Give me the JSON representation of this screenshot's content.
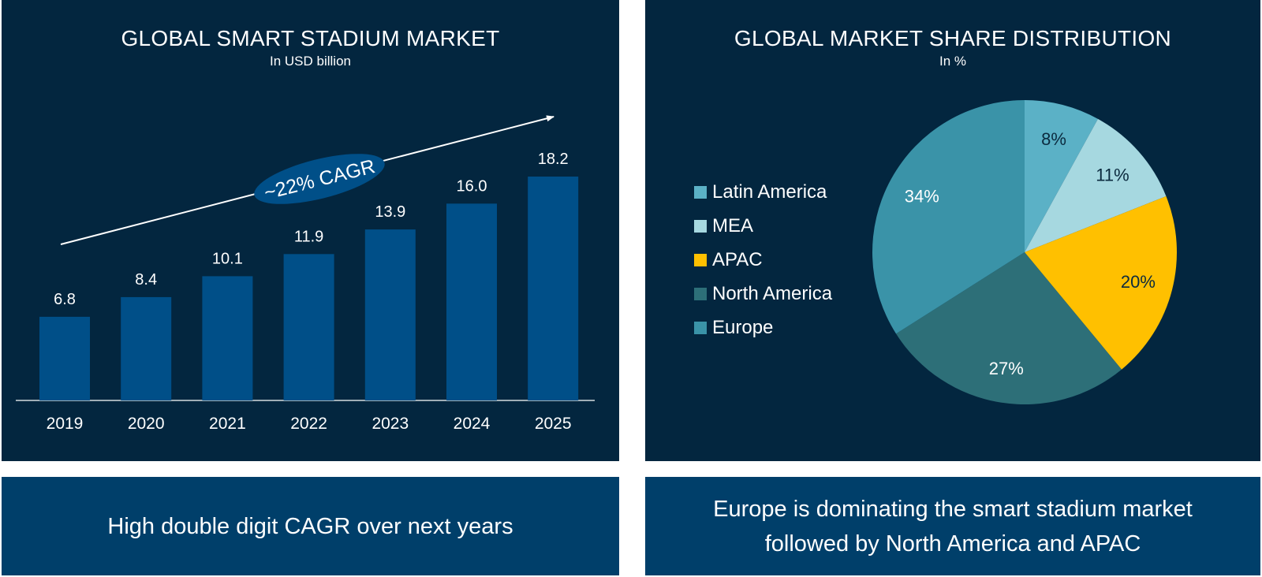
{
  "colors": {
    "panel_bg": "#03263f",
    "footer_bg": "#003f6a",
    "bar": "#004f88",
    "text": "#ffffff",
    "cagr_badge": "#004f88"
  },
  "left_panel": {
    "title": "GLOBAL SMART STADIUM MARKET",
    "subtitle": "In USD billion",
    "cagr_label": "~22% CAGR",
    "footer": "High double digit CAGR over next years"
  },
  "right_panel": {
    "title": "GLOBAL MARKET SHARE DISTRIBUTION",
    "subtitle": "In %",
    "footer": "Europe is dominating the smart stadium market\nfollowed by North America and APAC"
  },
  "chart_data": [
    {
      "type": "bar",
      "title": "GLOBAL SMART STADIUM MARKET",
      "subtitle": "In USD billion",
      "categories": [
        "2019",
        "2020",
        "2021",
        "2022",
        "2023",
        "2024",
        "2025"
      ],
      "values": [
        6.8,
        8.4,
        10.1,
        11.9,
        13.9,
        16.0,
        18.2
      ],
      "value_labels": [
        "6.8",
        "8.4",
        "10.1",
        "11.9",
        "13.9",
        "16.0",
        "18.2"
      ],
      "ylim": [
        0,
        18.2
      ],
      "grid": false,
      "annotation": "~22% CAGR"
    },
    {
      "type": "pie",
      "title": "GLOBAL MARKET SHARE DISTRIBUTION",
      "subtitle": "In %",
      "legend_position": "left",
      "slices": [
        {
          "name": "Latin America",
          "value": 8,
          "label": "8%",
          "color": "#5bb1c6"
        },
        {
          "name": "MEA",
          "value": 11,
          "label": "11%",
          "color": "#a6d8e0"
        },
        {
          "name": "APAC",
          "value": 20,
          "label": "20%",
          "color": "#ffc000"
        },
        {
          "name": "North America",
          "value": 27,
          "label": "27%",
          "color": "#2d6f78"
        },
        {
          "name": "Europe",
          "value": 34,
          "label": "34%",
          "color": "#3a93a8"
        }
      ]
    }
  ]
}
